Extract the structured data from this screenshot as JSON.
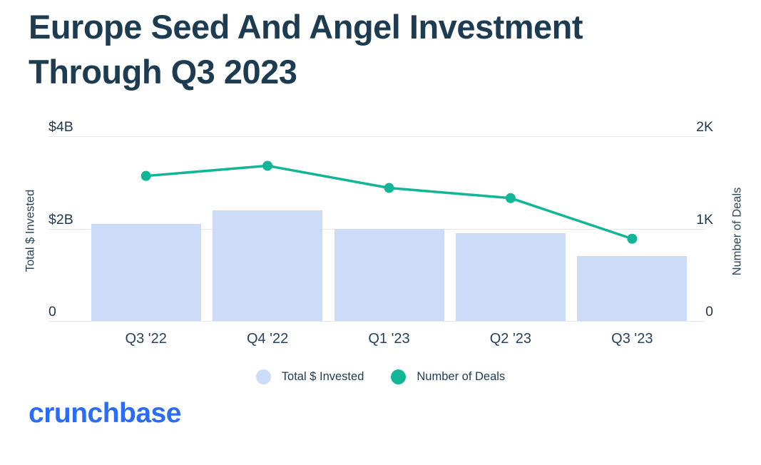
{
  "title": {
    "line1": "Europe Seed And Angel Investment",
    "line2": "Through Q3 2023"
  },
  "logo_text": "crunchbase",
  "legend": [
    {
      "label": "Total $ Invested",
      "color": "#ccdbf8"
    },
    {
      "label": "Number of Deals",
      "color": "#12b596"
    }
  ],
  "colors": {
    "title_text": "#1d3c51",
    "axis_text": "#22394e",
    "gridline": "#e7e7e7",
    "bar_fill": "#ccdbf8",
    "line_stroke": "#12b596",
    "logo_blue": "#2b6cf6",
    "background": "#ffffff"
  },
  "chart_data": {
    "type": "bar",
    "subtype": "combo bar+line, dual axis",
    "title": "Europe Seed And Angel Investment Through Q3 2023",
    "categories": [
      "Q3 '22",
      "Q4 '22",
      "Q1 '23",
      "Q2 '23",
      "Q3 '23"
    ],
    "series": [
      {
        "name": "Total $ Invested",
        "render": "bar",
        "axis": "left",
        "unit": "USD billions",
        "values": [
          2.1,
          2.4,
          2.0,
          1.9,
          1.4
        ],
        "color": "#ccdbf8"
      },
      {
        "name": "Number of Deals",
        "render": "line",
        "axis": "right",
        "unit": "deals",
        "values": [
          1570,
          1680,
          1440,
          1330,
          890
        ],
        "color": "#12b596"
      }
    ],
    "left_axis": {
      "title": "Total $ Invested",
      "max": 4,
      "ticks": [
        {
          "value": 4,
          "label": "$4B"
        },
        {
          "value": 2,
          "label": "$2B"
        },
        {
          "value": 0,
          "label": "0"
        }
      ]
    },
    "right_axis": {
      "title": "Number of Deals",
      "max": 2000,
      "ticks": [
        {
          "value": 2000,
          "label": "2K"
        },
        {
          "value": 1000,
          "label": "1K"
        },
        {
          "value": 0,
          "label": "0"
        }
      ]
    },
    "grid": "horizontal gridlines only",
    "legend_position": "bottom center"
  }
}
